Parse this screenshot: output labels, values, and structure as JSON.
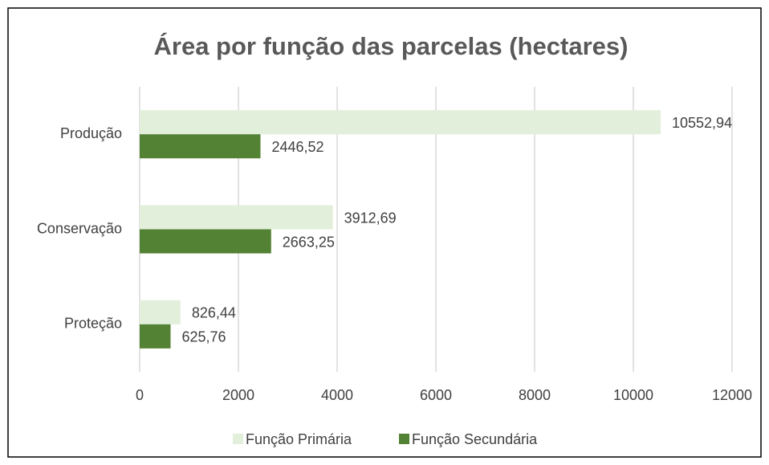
{
  "chart_data": {
    "type": "bar",
    "orientation": "horizontal",
    "title": "Área por função das parcelas (hectares)",
    "categories": [
      "Produção",
      "Conservação",
      "Proteção"
    ],
    "series": [
      {
        "name": "Função Primária",
        "color": "#e2efda",
        "values": [
          10552.94,
          3912.69,
          826.44
        ],
        "value_labels": [
          "10552,94",
          "3912,69",
          "826,44"
        ]
      },
      {
        "name": "Função Secundária",
        "color": "#548235",
        "values": [
          2446.52,
          2663.25,
          625.76
        ],
        "value_labels": [
          "2446,52",
          "2663,25",
          "625,76"
        ]
      }
    ],
    "xlim": [
      0,
      12000
    ],
    "xticks": [
      0,
      2000,
      4000,
      6000,
      8000,
      10000,
      12000
    ],
    "grid": true,
    "legend": "bottom"
  }
}
